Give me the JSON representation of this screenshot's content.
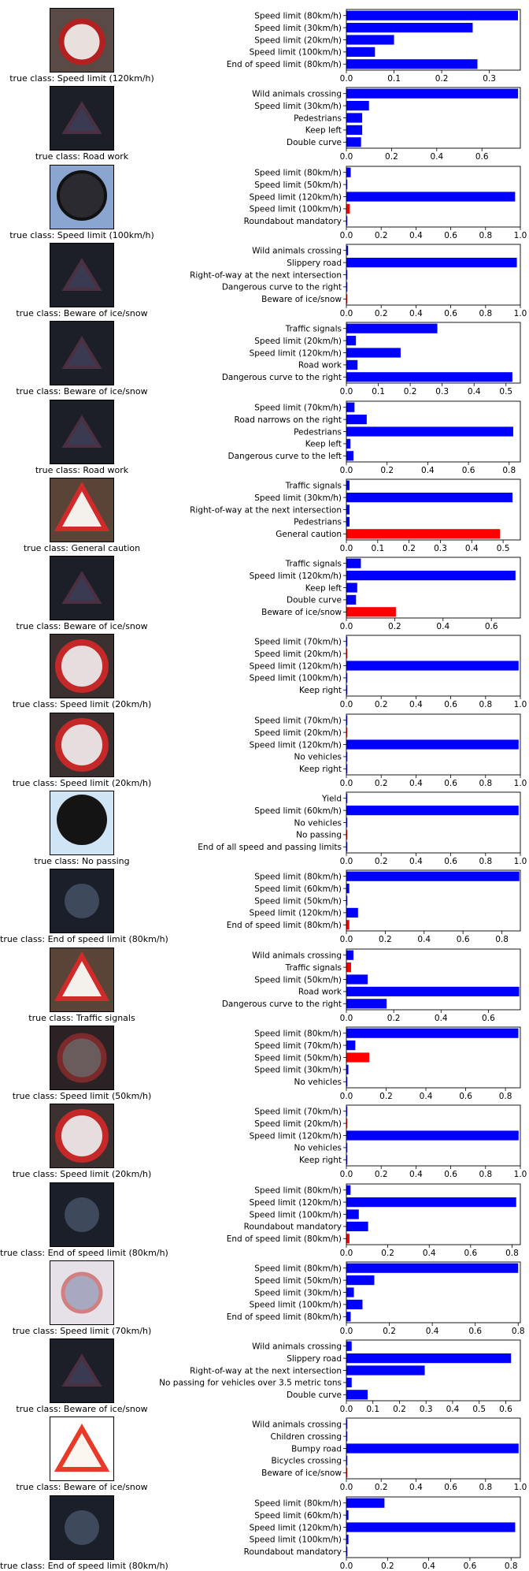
{
  "chart_data": [
    {
      "type": "bar",
      "image": "speed-limit-120-sign",
      "true_class_text": "true class: Speed limit (120km/h)",
      "categories": [
        "Speed limit (80km/h)",
        "Speed limit (30km/h)",
        "Speed limit (20km/h)",
        "Speed limit (100km/h)",
        "End of speed limit (80km/h)"
      ],
      "values": [
        0.36,
        0.265,
        0.1,
        0.06,
        0.275
      ],
      "bar_colors": [
        "#0000ff",
        "#0000ff",
        "#0000ff",
        "#0000ff",
        "#0000ff"
      ],
      "xlim": [
        0,
        0.365
      ],
      "xticks": [
        0,
        0.1,
        0.2,
        0.3
      ],
      "xtick_labels": [
        "0.0",
        "0.1",
        "0.2",
        "0.3"
      ]
    },
    {
      "type": "bar",
      "image": "warning-triangle-dark",
      "true_class_text": "true class: Road work",
      "categories": [
        "Wild animals crossing",
        "Speed limit (30km/h)",
        "Pedestrians",
        "Keep left",
        "Double curve"
      ],
      "values": [
        0.76,
        0.1,
        0.07,
        0.07,
        0.065
      ],
      "bar_colors": [
        "#0000ff",
        "#0000ff",
        "#0000ff",
        "#0000ff",
        "#0000ff"
      ],
      "xlim": [
        0,
        0.77
      ],
      "xticks": [
        0,
        0.2,
        0.4,
        0.6
      ],
      "xtick_labels": [
        "0.0",
        "0.2",
        "0.4",
        "0.6"
      ]
    },
    {
      "type": "bar",
      "image": "round-sign-bright",
      "true_class_text": "true class: Speed limit (100km/h)",
      "categories": [
        "Speed limit (80km/h)",
        "Speed limit (50km/h)",
        "Speed limit (120km/h)",
        "Speed limit (100km/h)",
        "Roundabout mandatory"
      ],
      "values": [
        0.025,
        0.005,
        0.97,
        0.02,
        0.005
      ],
      "bar_colors": [
        "#0000ff",
        "#0000ff",
        "#0000ff",
        "#ff0000",
        "#0000ff"
      ],
      "xlim": [
        0,
        1.0
      ],
      "xticks": [
        0,
        0.2,
        0.4,
        0.6,
        0.8,
        1.0
      ],
      "xtick_labels": [
        "0.0",
        "0.2",
        "0.4",
        "0.6",
        "0.8",
        "1.0"
      ]
    },
    {
      "type": "bar",
      "image": "warning-triangle-dark",
      "true_class_text": "true class: Beware of ice/snow",
      "categories": [
        "Wild animals crossing",
        "Slippery road",
        "Right-of-way at the next intersection",
        "Dangerous curve to the right",
        "Beware of ice/snow"
      ],
      "values": [
        0.01,
        0.98,
        0.005,
        0.005,
        0.005
      ],
      "bar_colors": [
        "#0000ff",
        "#0000ff",
        "#0000ff",
        "#0000ff",
        "#ff0000"
      ],
      "xlim": [
        0,
        1.0
      ],
      "xticks": [
        0,
        0.2,
        0.4,
        0.6,
        0.8,
        1.0
      ],
      "xtick_labels": [
        "0.0",
        "0.2",
        "0.4",
        "0.6",
        "0.8",
        "1.0"
      ]
    },
    {
      "type": "bar",
      "image": "warning-triangle-dark",
      "true_class_text": "true class: Beware of ice/snow",
      "categories": [
        "Traffic signals",
        "Speed limit (20km/h)",
        "Speed limit (120km/h)",
        "Road work",
        "Dangerous curve to the right"
      ],
      "values": [
        0.285,
        0.03,
        0.17,
        0.035,
        0.52
      ],
      "bar_colors": [
        "#0000ff",
        "#0000ff",
        "#0000ff",
        "#0000ff",
        "#0000ff"
      ],
      "xlim": [
        0,
        0.545
      ],
      "xticks": [
        0,
        0.1,
        0.2,
        0.3,
        0.4,
        0.5
      ],
      "xtick_labels": [
        "0.0",
        "0.1",
        "0.2",
        "0.3",
        "0.4",
        "0.5"
      ]
    },
    {
      "type": "bar",
      "image": "warning-triangle-dark",
      "true_class_text": "true class: Road work",
      "categories": [
        "Speed limit (70km/h)",
        "Road narrows on the right",
        "Pedestrians",
        "Keep left",
        "Dangerous curve to the left"
      ],
      "values": [
        0.04,
        0.1,
        0.82,
        0.02,
        0.035
      ],
      "bar_colors": [
        "#0000ff",
        "#0000ff",
        "#0000ff",
        "#0000ff",
        "#0000ff"
      ],
      "xlim": [
        0,
        0.855
      ],
      "xticks": [
        0,
        0.2,
        0.4,
        0.6,
        0.8
      ],
      "xtick_labels": [
        "0.0",
        "0.2",
        "0.4",
        "0.6",
        "0.8"
      ]
    },
    {
      "type": "bar",
      "image": "warning-triangle-bright",
      "true_class_text": "true class: General caution",
      "categories": [
        "Traffic signals",
        "Speed limit (30km/h)",
        "Right-of-way at the next intersection",
        "Pedestrians",
        "General caution"
      ],
      "values": [
        0.01,
        0.53,
        0.01,
        0.01,
        0.49
      ],
      "bar_colors": [
        "#0000ff",
        "#0000ff",
        "#0000ff",
        "#0000ff",
        "#ff0000"
      ],
      "xlim": [
        0,
        0.555
      ],
      "xticks": [
        0,
        0.1,
        0.2,
        0.3,
        0.4,
        0.5
      ],
      "xtick_labels": [
        "0.0",
        "0.1",
        "0.2",
        "0.3",
        "0.4",
        "0.5"
      ]
    },
    {
      "type": "bar",
      "image": "warning-triangle-dark",
      "true_class_text": "true class: Beware of ice/snow",
      "categories": [
        "Traffic signals",
        "Speed limit (120km/h)",
        "Keep left",
        "Double curve",
        "Beware of ice/snow"
      ],
      "values": [
        0.06,
        0.7,
        0.045,
        0.04,
        0.205
      ],
      "bar_colors": [
        "#0000ff",
        "#0000ff",
        "#0000ff",
        "#0000ff",
        "#ff0000"
      ],
      "xlim": [
        0,
        0.72
      ],
      "xticks": [
        0,
        0.2,
        0.4,
        0.6
      ],
      "xtick_labels": [
        "0.0",
        "0.2",
        "0.4",
        "0.6"
      ]
    },
    {
      "type": "bar",
      "image": "speed-limit-20-sign",
      "true_class_text": "true class: Speed limit (20km/h)",
      "categories": [
        "Speed limit (70km/h)",
        "Speed limit (20km/h)",
        "Speed limit (120km/h)",
        "Speed limit (100km/h)",
        "Keep right"
      ],
      "values": [
        0.005,
        0.005,
        0.99,
        0.003,
        0.003
      ],
      "bar_colors": [
        "#0000ff",
        "#ff0000",
        "#0000ff",
        "#0000ff",
        "#0000ff"
      ],
      "xlim": [
        0,
        1.0
      ],
      "xticks": [
        0,
        0.2,
        0.4,
        0.6,
        0.8,
        1.0
      ],
      "xtick_labels": [
        "0.0",
        "0.2",
        "0.4",
        "0.6",
        "0.8",
        "1.0"
      ]
    },
    {
      "type": "bar",
      "image": "speed-limit-20-sign",
      "true_class_text": "true class: Speed limit (20km/h)",
      "categories": [
        "Speed limit (70km/h)",
        "Speed limit (20km/h)",
        "Speed limit (120km/h)",
        "No vehicles",
        "Keep right"
      ],
      "values": [
        0.005,
        0.005,
        0.99,
        0.003,
        0.003
      ],
      "bar_colors": [
        "#0000ff",
        "#ff0000",
        "#0000ff",
        "#0000ff",
        "#0000ff"
      ],
      "xlim": [
        0,
        1.0
      ],
      "xticks": [
        0,
        0.2,
        0.4,
        0.6,
        0.8,
        1.0
      ],
      "xtick_labels": [
        "0.0",
        "0.2",
        "0.4",
        "0.6",
        "0.8",
        "1.0"
      ]
    },
    {
      "type": "bar",
      "image": "round-sign-backlit",
      "true_class_text": "true class: No passing",
      "categories": [
        "Yield",
        "Speed limit (60km/h)",
        "No vehicles",
        "No passing",
        "End of all speed and passing limits"
      ],
      "values": [
        0.005,
        0.99,
        0.005,
        0.005,
        0.005
      ],
      "bar_colors": [
        "#0000ff",
        "#0000ff",
        "#0000ff",
        "#ff0000",
        "#0000ff"
      ],
      "xlim": [
        0,
        1.0
      ],
      "xticks": [
        0,
        0.2,
        0.4,
        0.6,
        0.8,
        1.0
      ],
      "xtick_labels": [
        "0.0",
        "0.2",
        "0.4",
        "0.6",
        "0.8",
        "1.0"
      ]
    },
    {
      "type": "bar",
      "image": "end-of-limit-sign-dark",
      "true_class_text": "true class: End of speed limit (80km/h)",
      "categories": [
        "Speed limit (80km/h)",
        "Speed limit (60km/h)",
        "Speed limit (50km/h)",
        "Speed limit (120km/h)",
        "End of speed limit (80km/h)"
      ],
      "values": [
        0.89,
        0.015,
        0.005,
        0.06,
        0.015
      ],
      "bar_colors": [
        "#0000ff",
        "#0000ff",
        "#0000ff",
        "#0000ff",
        "#ff0000"
      ],
      "xlim": [
        0,
        0.895
      ],
      "xticks": [
        0,
        0.2,
        0.4,
        0.6,
        0.8
      ],
      "xtick_labels": [
        "0.0",
        "0.2",
        "0.4",
        "0.6",
        "0.8"
      ]
    },
    {
      "type": "bar",
      "image": "warning-triangle-bright",
      "true_class_text": "true class: Traffic signals",
      "categories": [
        "Wild animals crossing",
        "Traffic signals",
        "Speed limit (50km/h)",
        "Road work",
        "Dangerous curve to the right"
      ],
      "values": [
        0.03,
        0.02,
        0.09,
        0.73,
        0.17
      ],
      "bar_colors": [
        "#0000ff",
        "#ff0000",
        "#0000ff",
        "#0000ff",
        "#0000ff"
      ],
      "xlim": [
        0,
        0.735
      ],
      "xticks": [
        0,
        0.2,
        0.4,
        0.6
      ],
      "xtick_labels": [
        "0.0",
        "0.2",
        "0.4",
        "0.6"
      ]
    },
    {
      "type": "bar",
      "image": "speed-limit-50-sign-dark",
      "true_class_text": "true class: Speed limit (50km/h)",
      "categories": [
        "Speed limit (80km/h)",
        "Speed limit (70km/h)",
        "Speed limit (50km/h)",
        "Speed limit (30km/h)",
        "No vehicles"
      ],
      "values": [
        0.865,
        0.045,
        0.115,
        0.01,
        0.005
      ],
      "bar_colors": [
        "#0000ff",
        "#0000ff",
        "#ff0000",
        "#0000ff",
        "#0000ff"
      ],
      "xlim": [
        0,
        0.875
      ],
      "xticks": [
        0,
        0.2,
        0.4,
        0.6,
        0.8
      ],
      "xtick_labels": [
        "0.0",
        "0.2",
        "0.4",
        "0.6",
        "0.8"
      ]
    },
    {
      "type": "bar",
      "image": "speed-limit-20-sign",
      "true_class_text": "true class: Speed limit (20km/h)",
      "categories": [
        "Speed limit (70km/h)",
        "Speed limit (20km/h)",
        "Speed limit (120km/h)",
        "No vehicles",
        "Keep right"
      ],
      "values": [
        0.005,
        0.005,
        0.99,
        0.003,
        0.003
      ],
      "bar_colors": [
        "#0000ff",
        "#ff0000",
        "#0000ff",
        "#0000ff",
        "#0000ff"
      ],
      "xlim": [
        0,
        1.0
      ],
      "xticks": [
        0,
        0.2,
        0.4,
        0.6,
        0.8,
        1.0
      ],
      "xtick_labels": [
        "0.0",
        "0.2",
        "0.4",
        "0.6",
        "0.8",
        "1.0"
      ]
    },
    {
      "type": "bar",
      "image": "end-of-limit-sign-dark",
      "true_class_text": "true class: End of speed limit (80km/h)",
      "categories": [
        "Speed limit (80km/h)",
        "Speed limit (120km/h)",
        "Speed limit (100km/h)",
        "Roundabout mandatory",
        "End of speed limit (80km/h)"
      ],
      "values": [
        0.02,
        0.82,
        0.06,
        0.105,
        0.015
      ],
      "bar_colors": [
        "#0000ff",
        "#0000ff",
        "#0000ff",
        "#0000ff",
        "#ff0000"
      ],
      "xlim": [
        0,
        0.84
      ],
      "xticks": [
        0,
        0.2,
        0.4,
        0.6,
        0.8
      ],
      "xtick_labels": [
        "0.0",
        "0.2",
        "0.4",
        "0.6",
        "0.8"
      ]
    },
    {
      "type": "bar",
      "image": "washed-out-round-sign",
      "true_class_text": "true class: Speed limit (70km/h)",
      "categories": [
        "Speed limit (80km/h)",
        "Speed limit (50km/h)",
        "Speed limit (30km/h)",
        "Speed limit (100km/h)",
        "End of speed limit (80km/h)"
      ],
      "values": [
        0.8,
        0.13,
        0.035,
        0.075,
        0.02
      ],
      "bar_colors": [
        "#0000ff",
        "#0000ff",
        "#0000ff",
        "#0000ff",
        "#0000ff"
      ],
      "xlim": [
        0,
        0.81
      ],
      "xticks": [
        0,
        0.2,
        0.4,
        0.6,
        0.8
      ],
      "xtick_labels": [
        "0.0",
        "0.2",
        "0.4",
        "0.6",
        "0.8"
      ]
    },
    {
      "type": "bar",
      "image": "warning-triangle-dark",
      "true_class_text": "true class: Beware of ice/snow",
      "categories": [
        "Wild animals crossing",
        "Slippery road",
        "Right-of-way at the next intersection",
        "No passing for vehicles over 3.5 metric tons",
        "Double curve"
      ],
      "values": [
        0.02,
        0.62,
        0.295,
        0.02,
        0.08
      ],
      "bar_colors": [
        "#0000ff",
        "#0000ff",
        "#0000ff",
        "#0000ff",
        "#0000ff"
      ],
      "xlim": [
        0,
        0.655
      ],
      "xticks": [
        0,
        0.1,
        0.2,
        0.3,
        0.4,
        0.5,
        0.6
      ],
      "xtick_labels": [
        "0.0",
        "0.1",
        "0.2",
        "0.3",
        "0.4",
        "0.5",
        "0.6"
      ]
    },
    {
      "type": "bar",
      "image": "warning-triangle-white-bg",
      "true_class_text": "true class: Beware of ice/snow",
      "categories": [
        "Wild animals crossing",
        "Children crossing",
        "Bumpy road",
        "Bicycles crossing",
        "Beware of ice/snow"
      ],
      "values": [
        0.003,
        0.003,
        0.99,
        0.003,
        0.003
      ],
      "bar_colors": [
        "#0000ff",
        "#0000ff",
        "#0000ff",
        "#0000ff",
        "#ff0000"
      ],
      "xlim": [
        0,
        1.0
      ],
      "xticks": [
        0,
        0.2,
        0.4,
        0.6,
        0.8,
        1.0
      ],
      "xtick_labels": [
        "0.0",
        "0.2",
        "0.4",
        "0.6",
        "0.8",
        "1.0"
      ]
    },
    {
      "type": "bar",
      "image": "end-of-limit-sign-dark",
      "true_class_text": "true class: End of speed limit (80km/h)",
      "categories": [
        "Speed limit (80km/h)",
        "Speed limit (60km/h)",
        "Speed limit (120km/h)",
        "Speed limit (100km/h)",
        "Roundabout mandatory"
      ],
      "values": [
        0.185,
        0.01,
        0.82,
        0.01,
        0.005
      ],
      "bar_colors": [
        "#0000ff",
        "#0000ff",
        "#0000ff",
        "#0000ff",
        "#0000ff"
      ],
      "xlim": [
        0,
        0.845
      ],
      "xticks": [
        0,
        0.2,
        0.4,
        0.6,
        0.8
      ],
      "xtick_labels": [
        "0.0",
        "0.2",
        "0.4",
        "0.6",
        "0.8"
      ]
    }
  ]
}
